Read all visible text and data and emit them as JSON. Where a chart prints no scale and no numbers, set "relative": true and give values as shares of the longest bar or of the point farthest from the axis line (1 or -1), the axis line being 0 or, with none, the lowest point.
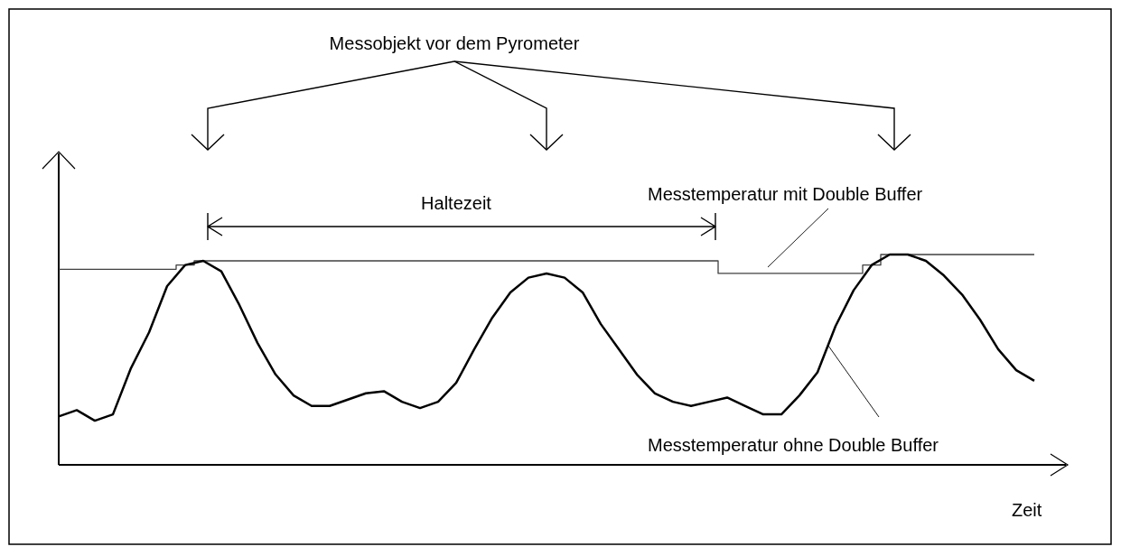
{
  "chart_data": {
    "type": "line",
    "relative": true,
    "xlabel": "Zeit",
    "legend": false,
    "annotations": [
      "Messobjekt vor dem Pyrometer",
      "Haltezeit"
    ],
    "categories": [
      null,
      null,
      null,
      null,
      null,
      null,
      null,
      null,
      null,
      null,
      null,
      null,
      null,
      null,
      null,
      null,
      null,
      null,
      null,
      null,
      null,
      null,
      null,
      null,
      null,
      null,
      null,
      null,
      null,
      null,
      null,
      null,
      null,
      null,
      null,
      null,
      null,
      null,
      null,
      null,
      null,
      null,
      null,
      null,
      null,
      null,
      null,
      null,
      null,
      null,
      null,
      null,
      null,
      null,
      null
    ],
    "series": [
      {
        "name": "Messtemperatur mit Double Buffer",
        "type": "step",
        "color": "#404040",
        "values": [
          0.93,
          0.93,
          0.93,
          0.93,
          0.93,
          0.93,
          0.93,
          0.95,
          0.97,
          0.97,
          0.97,
          0.97,
          0.97,
          0.97,
          0.97,
          0.97,
          0.97,
          0.97,
          0.97,
          0.97,
          0.97,
          0.97,
          0.97,
          0.97,
          0.97,
          0.97,
          0.97,
          0.97,
          0.97,
          0.97,
          0.97,
          0.97,
          0.97,
          0.97,
          0.97,
          0.97,
          0.97,
          0.91,
          0.91,
          0.91,
          0.91,
          0.91,
          0.91,
          0.91,
          0.91,
          0.95,
          1.0,
          1.0,
          1.0,
          1.0,
          1.0,
          1.0,
          1.0,
          1.0,
          1.0
        ]
      },
      {
        "name": "Messtemperatur ohne Double Buffer",
        "type": "line",
        "color": "#000000",
        "values": [
          0.23,
          0.26,
          0.21,
          0.24,
          0.46,
          0.63,
          0.85,
          0.95,
          0.97,
          0.92,
          0.76,
          0.58,
          0.43,
          0.33,
          0.28,
          0.28,
          0.31,
          0.34,
          0.35,
          0.3,
          0.27,
          0.3,
          0.39,
          0.55,
          0.7,
          0.82,
          0.89,
          0.91,
          0.89,
          0.82,
          0.67,
          0.55,
          0.43,
          0.34,
          0.3,
          0.28,
          0.3,
          0.32,
          0.28,
          0.24,
          0.24,
          0.33,
          0.44,
          0.66,
          0.83,
          0.95,
          1.0,
          1.0,
          0.97,
          0.9,
          0.81,
          0.69,
          0.55,
          0.45,
          0.4
        ]
      }
    ]
  }
}
